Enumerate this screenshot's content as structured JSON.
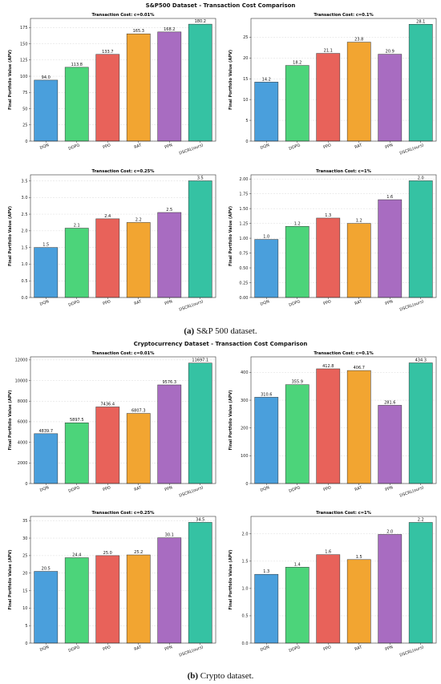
{
  "figure_a": {
    "suptitle": "S&P500 Dataset - Transaction Cost Comparison",
    "caption_label": "(a)",
    "caption_text": "S&P 500 dataset."
  },
  "figure_b": {
    "suptitle": "Cryptocurrency Dataset - Transaction Cost Comparison",
    "caption_label": "(b)",
    "caption_text": "Crypto dataset."
  },
  "colors": [
    "#4a9fdc",
    "#4cd47a",
    "#e8625a",
    "#f2a531",
    "#a86cc1",
    "#35c2a3"
  ],
  "chart_data": [
    {
      "type": "bar",
      "title": "Transaction Cost: c=0.01%",
      "ylabel": "Final Portfolio Value (APV)",
      "categories": [
        "DQN",
        "DDPG",
        "PPO",
        "RAT",
        "PPN",
        "DSCRL(ours)"
      ],
      "values": [
        94.0,
        113.8,
        133.7,
        165.3,
        168.2,
        180.2
      ],
      "value_labels": [
        "94.0",
        "113.8",
        "133.7",
        "165.3",
        "168.2",
        "180.2"
      ],
      "ylim": [
        0,
        189
      ],
      "yticks": [
        0,
        25,
        50,
        75,
        100,
        125,
        150,
        175
      ],
      "ytick_labels": [
        "0",
        "25",
        "50",
        "75",
        "100",
        "125",
        "150",
        "175"
      ],
      "grid": true
    },
    {
      "type": "bar",
      "title": "Transaction Cost: c=0.1%",
      "ylabel": "Final Portfolio Value (APV)",
      "categories": [
        "DQN",
        "DDPG",
        "PPO",
        "RAT",
        "PPN",
        "DSCRL(ours)"
      ],
      "values": [
        14.2,
        18.2,
        21.1,
        23.8,
        20.9,
        28.1
      ],
      "value_labels": [
        "14.2",
        "18.2",
        "21.1",
        "23.8",
        "20.9",
        "28.1"
      ],
      "ylim": [
        0,
        29.5
      ],
      "yticks": [
        0,
        5,
        10,
        15,
        20,
        25
      ],
      "ytick_labels": [
        "0",
        "5",
        "10",
        "15",
        "20",
        "25"
      ],
      "grid": true
    },
    {
      "type": "bar",
      "title": "Transaction Cost: c=0.25%",
      "ylabel": "Final Portfolio Value (APV)",
      "categories": [
        "DQN",
        "DDPG",
        "PPO",
        "RAT",
        "PPN",
        "DSCRL(ours)"
      ],
      "values": [
        1.5,
        2.08,
        2.36,
        2.25,
        2.55,
        3.5
      ],
      "value_labels": [
        "1.5",
        "2.1",
        "2.4",
        "2.2",
        "2.5",
        "3.5"
      ],
      "ylim": [
        0,
        3.68
      ],
      "yticks": [
        0,
        0.5,
        1.0,
        1.5,
        2.0,
        2.5,
        3.0,
        3.5
      ],
      "ytick_labels": [
        "0.0",
        "0.5",
        "1.0",
        "1.5",
        "2.0",
        "2.5",
        "3.0",
        "3.5"
      ],
      "grid": true
    },
    {
      "type": "bar",
      "title": "Transaction Cost: c=1%",
      "ylabel": "Final Portfolio Value (APV)",
      "categories": [
        "DQN",
        "DDPG",
        "PPO",
        "RAT",
        "PPN",
        "DSCRL(ours)"
      ],
      "values": [
        0.98,
        1.2,
        1.34,
        1.25,
        1.65,
        1.97
      ],
      "value_labels": [
        "1.0",
        "1.2",
        "1.3",
        "1.2",
        "1.6",
        "2.0"
      ],
      "ylim": [
        0,
        2.07
      ],
      "yticks": [
        0,
        0.25,
        0.5,
        0.75,
        1.0,
        1.25,
        1.5,
        1.75,
        2.0
      ],
      "ytick_labels": [
        "0.00",
        "0.25",
        "0.50",
        "0.75",
        "1.00",
        "1.25",
        "1.50",
        "1.75",
        "2.00"
      ],
      "grid": true
    },
    {
      "type": "bar",
      "title": "Transaction Cost: c=0.01%",
      "ylabel": "Final Portfolio Value (APV)",
      "categories": [
        "DQN",
        "DDPG",
        "PPO",
        "RAT",
        "PPN",
        "DSCRL(ours)"
      ],
      "values": [
        4839.7,
        5897.5,
        7436.4,
        6807.3,
        9576.3,
        11697.1
      ],
      "value_labels": [
        "4839.7",
        "5897.5",
        "7436.4",
        "6807.3",
        "9576.3",
        "11697.1"
      ],
      "ylim": [
        0,
        12300
      ],
      "yticks": [
        0,
        2000,
        4000,
        6000,
        8000,
        10000,
        12000
      ],
      "ytick_labels": [
        "0",
        "2000",
        "4000",
        "6000",
        "8000",
        "10000",
        "12000"
      ],
      "grid": true
    },
    {
      "type": "bar",
      "title": "Transaction Cost: c=0.1%",
      "ylabel": "Final Portfolio Value (APV)",
      "categories": [
        "DQN",
        "DDPG",
        "PPO",
        "RAT",
        "PPN",
        "DSCRL(ours)"
      ],
      "values": [
        310.6,
        355.9,
        412.8,
        406.7,
        281.6,
        434.3
      ],
      "value_labels": [
        "310.6",
        "355.9",
        "412.8",
        "406.7",
        "281.6",
        "434.3"
      ],
      "ylim": [
        0,
        456
      ],
      "yticks": [
        0,
        100,
        200,
        300,
        400
      ],
      "ytick_labels": [
        "0",
        "100",
        "200",
        "300",
        "400"
      ],
      "grid": true
    },
    {
      "type": "bar",
      "title": "Transaction Cost: c=0.25%",
      "ylabel": "Final Portfolio Value (APV)",
      "categories": [
        "DQN",
        "DDPG",
        "PPO",
        "RAT",
        "PPN",
        "DSCRL(ours)"
      ],
      "values": [
        20.5,
        24.4,
        25.0,
        25.2,
        30.1,
        34.5
      ],
      "value_labels": [
        "20.5",
        "24.4",
        "25.0",
        "25.2",
        "30.1",
        "34.5"
      ],
      "ylim": [
        0,
        36.2
      ],
      "yticks": [
        0,
        5,
        10,
        15,
        20,
        25,
        30,
        35
      ],
      "ytick_labels": [
        "0",
        "5",
        "10",
        "15",
        "20",
        "25",
        "30",
        "35"
      ],
      "grid": true
    },
    {
      "type": "bar",
      "title": "Transaction Cost: c=1%",
      "ylabel": "Final Portfolio Value (APV)",
      "categories": [
        "DQN",
        "DDPG",
        "PPO",
        "RAT",
        "PPN",
        "DSCRL(ours)"
      ],
      "values": [
        1.26,
        1.39,
        1.62,
        1.53,
        1.99,
        2.21
      ],
      "value_labels": [
        "1.3",
        "1.4",
        "1.6",
        "1.5",
        "2.0",
        "2.2"
      ],
      "ylim": [
        0,
        2.32
      ],
      "yticks": [
        0,
        0.5,
        1.0,
        1.5,
        2.0
      ],
      "ytick_labels": [
        "0.0",
        "0.5",
        "1.0",
        "1.5",
        "2.0"
      ],
      "grid": true
    }
  ]
}
